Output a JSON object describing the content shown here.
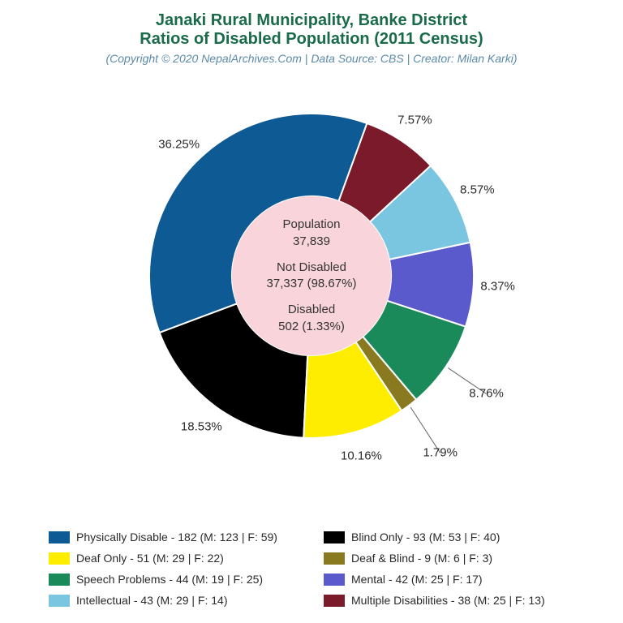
{
  "title": {
    "line1": "Janaki Rural Municipality, Banke District",
    "line2": "Ratios of Disabled Population (2011 Census)",
    "color": "#1a6b4a",
    "fontsize": 20
  },
  "subtitle": {
    "text": "(Copyright © 2020 NepalArchives.Com | Data Source: CBS | Creator: Milan Karki)",
    "color": "#5a8aa8",
    "fontsize": 14
  },
  "chart": {
    "type": "pie",
    "outer_radius": 200,
    "inner_radius": 98,
    "inner_fill": "#f9d4da",
    "background": "#ffffff",
    "start_angle_deg": 70,
    "direction": "ccw",
    "label_fontsize": 15,
    "label_radius": 230,
    "slices": [
      {
        "name": "Physically Disable",
        "value": 182,
        "pct": 36.25,
        "pct_label": "36.25%",
        "male": 123,
        "female": 59,
        "color": "#0d5a95"
      },
      {
        "name": "Blind Only",
        "value": 93,
        "pct": 18.53,
        "pct_label": "18.53%",
        "male": 53,
        "female": 40,
        "color": "#000000"
      },
      {
        "name": "Deaf Only",
        "value": 51,
        "pct": 10.16,
        "pct_label": "10.16%",
        "male": 29,
        "female": 22,
        "color": "#ffed00"
      },
      {
        "name": "Deaf & Blind",
        "value": 9,
        "pct": 1.79,
        "pct_label": "1.79%",
        "male": 6,
        "female": 3,
        "color": "#8a7a1f"
      },
      {
        "name": "Speech Problems",
        "value": 44,
        "pct": 8.76,
        "pct_label": "8.76%",
        "male": 19,
        "female": 25,
        "color": "#1a8a5a"
      },
      {
        "name": "Mental",
        "value": 42,
        "pct": 8.37,
        "pct_label": "8.37%",
        "male": 25,
        "female": 17,
        "color": "#5a5acc"
      },
      {
        "name": "Intellectual",
        "value": 43,
        "pct": 8.57,
        "pct_label": "8.57%",
        "male": 29,
        "female": 14,
        "color": "#7ac5e0"
      },
      {
        "name": "Multiple Disabilities",
        "value": 38,
        "pct": 7.57,
        "pct_label": "7.57%",
        "male": 25,
        "female": 13,
        "color": "#7a1a2a"
      }
    ]
  },
  "center": {
    "groups": [
      {
        "label": "Population",
        "value": "37,839"
      },
      {
        "label": "Not Disabled",
        "value": "37,337 (98.67%)"
      },
      {
        "label": "Disabled",
        "value": "502 (1.33%)"
      }
    ],
    "fontsize": 15,
    "color": "#333333"
  },
  "legend": {
    "fontsize": 14,
    "swatch_w": 26,
    "swatch_h": 15,
    "order": [
      0,
      1,
      2,
      3,
      4,
      5,
      6,
      7
    ]
  }
}
